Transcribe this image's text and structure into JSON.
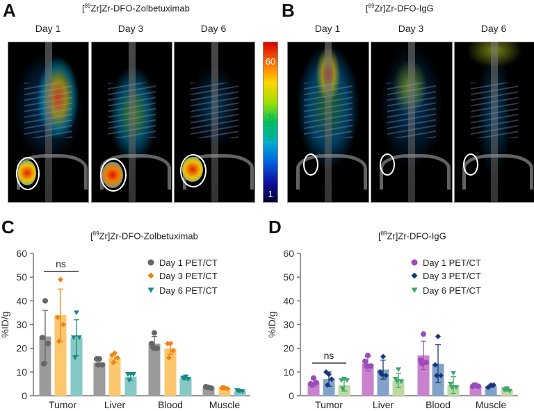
{
  "panels": {
    "A": {
      "letter": "A",
      "title_pre": "[",
      "title_sup": "89",
      "title_post": "Zr]Zr-DFO-Zolbetuximab",
      "days": [
        "Day 1",
        "Day 3",
        "Day 6"
      ]
    },
    "B": {
      "letter": "B",
      "title_pre": "[",
      "title_sup": "89",
      "title_post": "Zr]Zr-DFO-IgG",
      "days": [
        "Day 1",
        "Day 3",
        "Day 6"
      ]
    },
    "C": {
      "letter": "C",
      "title_pre": "[",
      "title_sup": "89",
      "title_post": "Zr]Zr-DFO-Zolbetuximab"
    },
    "D": {
      "letter": "D",
      "title_pre": "[",
      "title_sup": "89",
      "title_post": "Zr]Zr-DFO-IgG"
    }
  },
  "colorbar": {
    "label": "%ID/cc",
    "max": "60",
    "min": "1",
    "colormap": "jet"
  },
  "chart_data": [
    {
      "type": "bar",
      "panel": "C",
      "title": "[89Zr]Zr-DFO-Zolbetuximab",
      "ylabel": "%ID/g",
      "ylim": [
        0,
        60
      ],
      "yticks": [
        "0",
        "10",
        "20",
        "30",
        "40",
        "50",
        "60"
      ],
      "categories": [
        "Tumor",
        "Liver",
        "Blood",
        "Muscle"
      ],
      "legend_position": "top-right",
      "grid": false,
      "annotation": {
        "text": "ns",
        "category": "Tumor"
      },
      "series": [
        {
          "name": "Day 1 PET/CT",
          "marker": "circle",
          "bar_color": "#9b9b9b",
          "point_color": "#666666",
          "values": [
            25,
            14,
            22,
            3.5
          ],
          "sd": [
            11,
            1.5,
            3,
            0.5
          ],
          "points": [
            [
              40,
              24.5,
              22,
              13.5
            ],
            [
              15.5,
              15.5,
              13,
              13
            ],
            [
              26.5,
              22,
              20,
              20.5
            ],
            [
              3.5,
              3.8,
              3.2,
              3.6
            ]
          ]
        },
        {
          "name": "Day 3 PET/CT",
          "marker": "diamond",
          "bar_color": "#fcc76e",
          "point_color": "#f08414",
          "values": [
            34,
            16,
            20,
            3.2
          ],
          "sd": [
            11,
            2,
            2.5,
            0.4
          ],
          "points": [
            [
              49,
              33,
              30,
              23
            ],
            [
              18,
              17,
              16,
              14
            ],
            [
              22,
              22,
              19,
              16
            ],
            [
              3.3,
              3.3,
              3.0,
              3.4
            ]
          ]
        },
        {
          "name": "Day 6 PET/CT",
          "marker": "triangle-down",
          "bar_color": "#86c8c3",
          "point_color": "#178a86",
          "values": [
            24.5,
            8,
            7.5,
            2
          ],
          "sd": [
            7.5,
            1.5,
            0.8,
            0.3
          ],
          "points": [
            [
              35,
              24.5,
              24.5,
              16
            ],
            [
              9,
              9,
              9,
              6.5
            ],
            [
              8,
              7.5,
              7,
              7.5
            ],
            [
              2,
              2.2,
              1.8,
              2
            ]
          ]
        }
      ]
    },
    {
      "type": "bar",
      "panel": "D",
      "title": "[89Zr]Zr-DFO-IgG",
      "ylabel": "%ID/g",
      "ylim": [
        0,
        60
      ],
      "yticks": [
        "0",
        "10",
        "20",
        "30",
        "40",
        "50",
        "60"
      ],
      "categories": [
        "Tumor",
        "Liver",
        "Blood",
        "Muscle"
      ],
      "legend_position": "top-right",
      "grid": false,
      "annotation": {
        "text": "ns",
        "category": "Tumor"
      },
      "series": [
        {
          "name": "Day 1 PET/CT",
          "marker": "circle",
          "bar_color": "#c983cc",
          "point_color": "#9a4db8",
          "values": [
            5.5,
            13.5,
            17,
            4
          ],
          "sd": [
            1.5,
            3,
            6,
            0.5
          ],
          "points": [
            [
              7.5,
              5,
              5.5,
              4.5
            ],
            [
              17,
              14.5,
              12.5,
              12.5
            ],
            [
              26,
              15,
              14,
              13.5
            ],
            [
              4.5,
              4,
              4,
              4.5
            ]
          ]
        },
        {
          "name": "Day 3 PET/CT",
          "marker": "diamond",
          "bar_color": "#83a2c8",
          "point_color": "#17377d",
          "values": [
            7,
            11,
            13.5,
            4
          ],
          "sd": [
            3,
            4,
            8,
            0.5
          ],
          "points": [
            [
              9,
              10,
              7,
              4.5
            ],
            [
              16.5,
              10,
              8.5,
              9
            ],
            [
              25,
              13,
              8.5,
              8.5
            ],
            [
              4.5,
              3.5,
              4.5,
              4
            ]
          ]
        },
        {
          "name": "Day 6 PET/CT",
          "marker": "triangle-down",
          "bar_color": "#bcd9a4",
          "point_color": "#3aa66a",
          "values": [
            4.5,
            6.5,
            4.5,
            2.5
          ],
          "sd": [
            2.5,
            3,
            3.5,
            0.5
          ],
          "points": [
            [
              7,
              6.5,
              6.5,
              3
            ],
            [
              11,
              7,
              6,
              6
            ],
            [
              9.5,
              5,
              3.5,
              3.5
            ],
            [
              3,
              2.5,
              2,
              2.5
            ]
          ]
        }
      ]
    }
  ]
}
